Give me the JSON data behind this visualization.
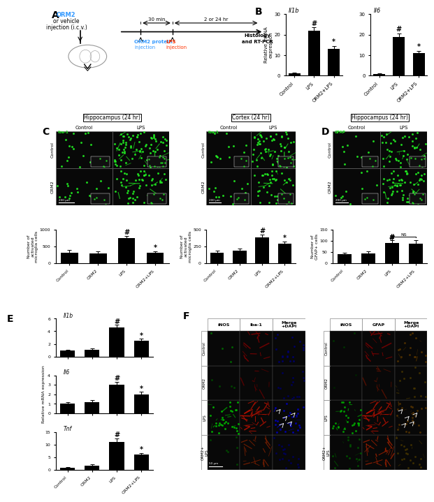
{
  "panel_B": {
    "Il1b": {
      "categories": [
        "Control",
        "LPS",
        "ORM2+LPS"
      ],
      "values": [
        1.0,
        22.0,
        13.0
      ],
      "errors": [
        0.5,
        1.5,
        1.5
      ],
      "ylabel": "Relative mRNA\nexpression",
      "ylim": [
        0,
        30
      ],
      "yticks": [
        0,
        10,
        20,
        30
      ],
      "title": "Il1b"
    },
    "Il6": {
      "categories": [
        "Control",
        "LPS",
        "ORM2+LPS"
      ],
      "values": [
        0.8,
        19.0,
        11.0
      ],
      "errors": [
        0.3,
        1.5,
        1.2
      ],
      "ylim": [
        0,
        30
      ],
      "yticks": [
        0,
        10,
        20,
        30
      ],
      "title": "Il6"
    }
  },
  "panel_C_hippo": {
    "categories": [
      "Control",
      "ORM2",
      "LPS",
      "ORM2+LPS"
    ],
    "values": [
      320,
      300,
      750,
      310
    ],
    "errors": [
      80,
      60,
      70,
      55
    ],
    "ylabel": "Number of\nactivated\nmicroglia cells",
    "ylim": [
      0,
      1000
    ],
    "yticks": [
      0,
      500,
      1000
    ]
  },
  "panel_C_cortex": {
    "categories": [
      "Control",
      "ORM2",
      "LPS",
      "ORM2+LPS"
    ],
    "values": [
      160,
      190,
      390,
      290
    ],
    "errors": [
      30,
      30,
      40,
      35
    ],
    "ylabel": "Number of\nactivated\nmicroglia cells",
    "ylim": [
      0,
      500
    ],
    "yticks": [
      0,
      250,
      500
    ]
  },
  "panel_D": {
    "categories": [
      "Control",
      "ORM2",
      "LPS",
      "ORM2+LPS"
    ],
    "values": [
      40,
      45,
      90,
      88
    ],
    "errors": [
      8,
      8,
      12,
      14
    ],
    "ylabel": "Number of\nGFAP+ cells",
    "ylim": [
      0,
      150
    ],
    "yticks": [
      0,
      50,
      100,
      150
    ]
  },
  "panel_E": {
    "Il1b": {
      "categories": [
        "Control",
        "ORM2",
        "LPS",
        "ORM2+LPS"
      ],
      "values": [
        0.9,
        1.1,
        4.6,
        2.5
      ],
      "errors": [
        0.2,
        0.2,
        0.4,
        0.3
      ],
      "ylim": [
        0,
        6
      ],
      "yticks": [
        0,
        2,
        4,
        6
      ],
      "title": "Il1b"
    },
    "Il6": {
      "categories": [
        "Control",
        "ORM2",
        "LPS",
        "ORM2+LPS"
      ],
      "values": [
        1.0,
        1.2,
        3.0,
        2.0
      ],
      "errors": [
        0.15,
        0.2,
        0.3,
        0.25
      ],
      "ylim": [
        0,
        4
      ],
      "yticks": [
        0,
        1,
        2,
        3,
        4
      ],
      "title": "Il6"
    },
    "Tnf": {
      "categories": [
        "Control",
        "ORM2",
        "LPS",
        "ORM2+LPS"
      ],
      "values": [
        1.0,
        1.8,
        11.0,
        6.0
      ],
      "errors": [
        0.2,
        0.4,
        1.5,
        0.8
      ],
      "ylim": [
        0,
        15
      ],
      "yticks": [
        0,
        5,
        10,
        15
      ],
      "title": "Tnf"
    },
    "ylabel": "Relative mRNA expression"
  },
  "colors": {
    "orm2_blue": "#3399FF",
    "lps_red": "#FF3300",
    "bar_black": "#111111"
  },
  "F_left_cols": [
    "iNOS",
    "Iba-1",
    "Merge\n+DAPI"
  ],
  "F_right_cols": [
    "iNOS",
    "GFAP",
    "Merge\n+DAPI"
  ],
  "F_rows": [
    "Control",
    "ORM2",
    "LPS",
    "ORM2+\nLPS"
  ]
}
